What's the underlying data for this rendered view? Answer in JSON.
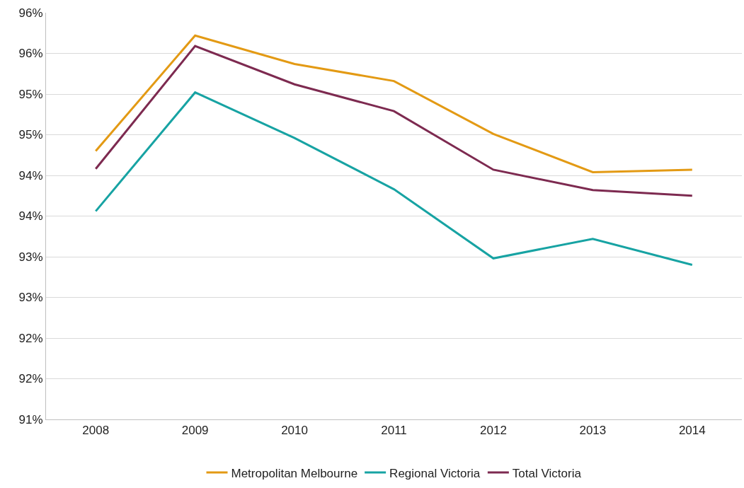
{
  "chart_data": {
    "type": "line",
    "categories": [
      "2008",
      "2009",
      "2010",
      "2011",
      "2012",
      "2013",
      "2014"
    ],
    "series": [
      {
        "name": "Metropolitan Melbourne",
        "color": "#e39a14",
        "values": [
          94.3,
          95.72,
          95.37,
          95.16,
          94.51,
          94.04,
          94.07
        ]
      },
      {
        "name": "Regional Victoria",
        "color": "#17a3a3",
        "values": [
          93.56,
          95.02,
          94.46,
          93.83,
          92.98,
          93.22,
          92.9
        ]
      },
      {
        "name": "Total Victoria",
        "color": "#7d2a50",
        "values": [
          94.08,
          95.59,
          95.12,
          94.79,
          94.07,
          93.82,
          93.75
        ]
      }
    ],
    "ylim": [
      91,
      96
    ],
    "yticks": [
      {
        "value": 91,
        "label": "91%"
      },
      {
        "value": 91.5,
        "label": "92%"
      },
      {
        "value": 92,
        "label": "92%"
      },
      {
        "value": 92.5,
        "label": "93%"
      },
      {
        "value": 93,
        "label": "93%"
      },
      {
        "value": 93.5,
        "label": "94%"
      },
      {
        "value": 94,
        "label": "94%"
      },
      {
        "value": 94.5,
        "label": "95%"
      },
      {
        "value": 95,
        "label": "95%"
      },
      {
        "value": 95.5,
        "label": "96%"
      },
      {
        "value": 96,
        "label": "96%"
      }
    ],
    "grid": "y",
    "legend": "bottom",
    "marker": "none",
    "line_style": "solid"
  }
}
